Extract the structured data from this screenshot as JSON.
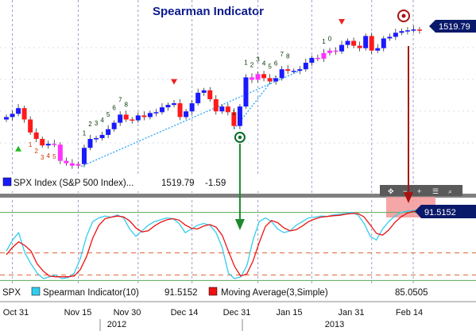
{
  "title": "Spearman Indicator",
  "price_panel": {
    "last_value_label": "1519.79",
    "legend_label": "SPX Index (S&P 500 Index)...",
    "legend_last": "1519.79",
    "legend_change": "-1.59",
    "ylim": [
      1340,
      1530
    ],
    "colors": {
      "up": "#1a1aff",
      "down": "#ff1a1a",
      "highlight": "#ff33ff",
      "trend": "#33aaff",
      "setup_num": "#cc3300",
      "tail_num": "#003300"
    }
  },
  "indicator_panel": {
    "last_value_label": "91.5152",
    "legend_symbol": "SPX",
    "series": [
      {
        "name": "Spearman Indicator(10)",
        "last": "91.5152",
        "color": "#33ccee"
      },
      {
        "name": "Moving Average(3,Simple)",
        "last": "85.0505",
        "color": "#ee1111"
      }
    ],
    "ylim": [
      -110,
      110
    ],
    "reference_lines": [
      85,
      -25,
      -85
    ]
  },
  "chart_data": {
    "type": "candlestick",
    "title": "Spearman Indicator",
    "x_tick_labels": [
      "Oct 31",
      "Nov 15",
      "Nov 30",
      "Dec 14",
      "Dec 31",
      "Jan 15",
      "Jan 31",
      "Feb 14"
    ],
    "x_year_labels": [
      "2012",
      "2013"
    ],
    "candles_daily_close_approx": [
      1413,
      1417,
      1424,
      1410,
      1394,
      1386,
      1378,
      1380,
      1379,
      1359,
      1356,
      1353,
      1355,
      1375,
      1386,
      1387,
      1391,
      1398,
      1406,
      1416,
      1410,
      1409,
      1415,
      1413,
      1418,
      1419,
      1425,
      1428,
      1430,
      1413,
      1420,
      1430,
      1443,
      1446,
      1435,
      1420,
      1426,
      1419,
      1402,
      1426,
      1462,
      1459,
      1466,
      1461,
      1457,
      1461,
      1472,
      1470,
      1470,
      1472,
      1480,
      1486,
      1485,
      1492,
      1495,
      1494,
      1502,
      1507,
      1501,
      1498,
      1513,
      1495,
      1498,
      1510,
      1512,
      1517,
      1519,
      1520,
      1521,
      1519.79
    ],
    "spearman_10": [
      -20,
      10,
      30,
      -25,
      -55,
      -80,
      -95,
      -90,
      -85,
      -95,
      -92,
      -80,
      -40,
      20,
      60,
      70,
      75,
      72,
      78,
      70,
      40,
      20,
      35,
      50,
      60,
      65,
      70,
      68,
      55,
      30,
      40,
      50,
      55,
      50,
      30,
      -10,
      -80,
      -95,
      -90,
      -60,
      10,
      60,
      70,
      60,
      40,
      30,
      35,
      50,
      60,
      70,
      72,
      75,
      74,
      78,
      80,
      82,
      85,
      78,
      55,
      20,
      10,
      40,
      60,
      75,
      85,
      88,
      90,
      91.5152
    ],
    "moving_average_3": [
      -30,
      -10,
      5,
      -5,
      -20,
      -55,
      -75,
      -88,
      -90,
      -90,
      -90,
      -88,
      -70,
      -35,
      15,
      50,
      68,
      72,
      75,
      73,
      62,
      43,
      32,
      35,
      48,
      58,
      65,
      68,
      64,
      51,
      42,
      40,
      48,
      52,
      45,
      23,
      -20,
      -62,
      -88,
      -82,
      -47,
      3,
      47,
      63,
      57,
      43,
      35,
      38,
      48,
      60,
      67,
      72,
      74,
      76,
      77,
      80,
      82,
      82,
      73,
      51,
      28,
      23,
      37,
      58,
      73,
      83,
      88,
      85.0505
    ],
    "annotations": {
      "setup_numbers_left": [
        "1",
        "2",
        "3",
        "4",
        "5"
      ],
      "setup_numbers_rise1": [
        "1",
        "2",
        "3",
        "4",
        "5",
        "6",
        "7",
        "8"
      ],
      "setup_numbers_rise2": [
        "1",
        "2",
        "3",
        "4",
        "5",
        "6",
        "7",
        "8"
      ],
      "setup_numbers_rise3": [
        "1"
      ],
      "setup_numbers_top": [
        "1",
        "0"
      ]
    }
  }
}
